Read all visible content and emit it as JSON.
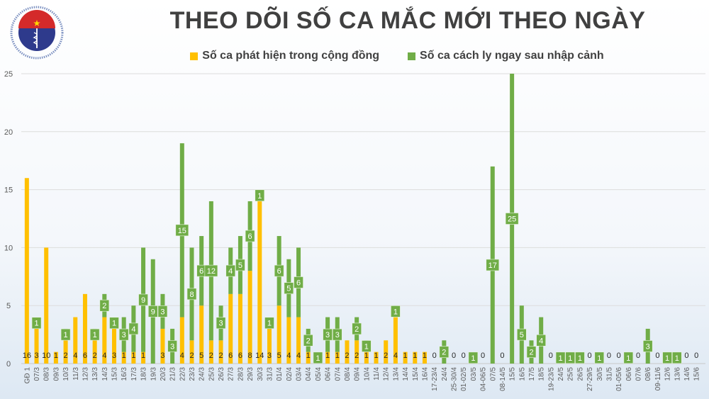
{
  "logo": {
    "text_top": "BỘ Y TẾ",
    "text_bottom": "MINISTRY OF HEALTH"
  },
  "chart_data": {
    "type": "bar",
    "stacked": true,
    "title": "THEO DÕI SỐ CA MẮC MỚI THEO NGÀY",
    "legend_position": "top",
    "ylim": [
      0,
      25
    ],
    "yticks": [
      0,
      5,
      10,
      15,
      20,
      25
    ],
    "grid": true,
    "categories": [
      "GĐ 1",
      "07/3",
      "08/3",
      "09/3",
      "10/3",
      "11/3",
      "12/3",
      "13/3",
      "14/3",
      "15/3",
      "16/3",
      "17/3",
      "18/3",
      "19/3",
      "20/3",
      "21/3",
      "22/3",
      "23/3",
      "24/3",
      "25/3",
      "26/3",
      "27/3",
      "28/3",
      "29/3",
      "30/3",
      "31/3",
      "01/4",
      "02/4",
      "03/4",
      "04/4",
      "05/4",
      "06/4",
      "07/4",
      "08/4",
      "09/4",
      "10/4",
      "11/4",
      "12/4",
      "13/4",
      "14/4",
      "15/4",
      "16/4",
      "17-23/4",
      "24/4",
      "25-30/4",
      "01-02/5",
      "03/5",
      "04-06/5",
      "07/5",
      "08-14/5",
      "15/5",
      "16/5",
      "17/5",
      "18/5",
      "19-23/5",
      "24/5",
      "25/5",
      "26/5",
      "27-29/5",
      "30/5",
      "31/5",
      "01-05/6",
      "06/6",
      "07/6",
      "08/6",
      "09-11/6",
      "12/6",
      "13/6",
      "14/6",
      "15/6"
    ],
    "series": [
      {
        "name": "Số ca phát hiện trong cộng đồng",
        "color": "#FFC000",
        "values": [
          16,
          3,
          10,
          1,
          2,
          4,
          6,
          2,
          4,
          3,
          1,
          1,
          1,
          0,
          3,
          0,
          4,
          2,
          5,
          2,
          2,
          6,
          6,
          8,
          14,
          3,
          5,
          4,
          4,
          1,
          0,
          1,
          1,
          2,
          2,
          1,
          1,
          2,
          4,
          1,
          1,
          1,
          0,
          0,
          0,
          0,
          0,
          0,
          0,
          0,
          0,
          0,
          0,
          0,
          0,
          0,
          0,
          0,
          0,
          0,
          0,
          0,
          0,
          0,
          0,
          0,
          0,
          0,
          0,
          0
        ]
      },
      {
        "name": "Số ca cách ly ngay sau nhập cảnh",
        "color": "#70AD47",
        "values": [
          0,
          1,
          0,
          0,
          1,
          0,
          0,
          1,
          2,
          1,
          3,
          4,
          9,
          9,
          3,
          3,
          15,
          8,
          6,
          12,
          3,
          4,
          5,
          6,
          1,
          1,
          6,
          5,
          6,
          2,
          1,
          3,
          3,
          0,
          2,
          1,
          0,
          0,
          1,
          0,
          0,
          0,
          0,
          2,
          0,
          0,
          1,
          0,
          17,
          0,
          25,
          5,
          2,
          4,
          0,
          1,
          1,
          1,
          0,
          1,
          0,
          0,
          1,
          0,
          3,
          0,
          1,
          1,
          0,
          0
        ]
      }
    ]
  }
}
